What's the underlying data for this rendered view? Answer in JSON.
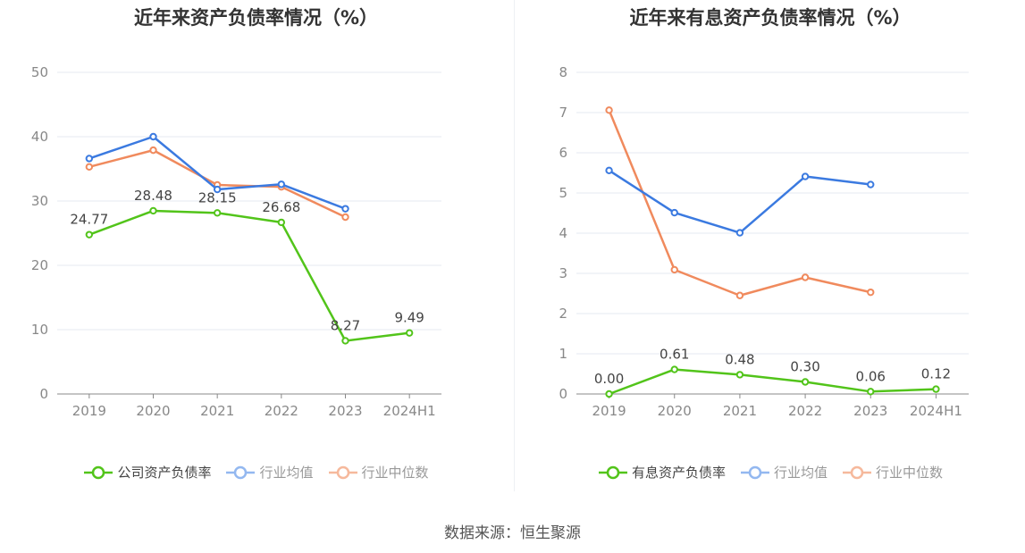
{
  "source": "数据来源：恒生聚源",
  "chart_data": [
    {
      "type": "line",
      "title": "近年来资产负债率情况（%）",
      "categories": [
        "2019",
        "2020",
        "2021",
        "2022",
        "2023",
        "2024H1"
      ],
      "ylim": [
        0,
        50
      ],
      "yticks": [
        "0",
        "10",
        "20",
        "30",
        "40",
        "50"
      ],
      "grid": true,
      "legend_position": "bottom",
      "series": [
        {
          "name": "公司资产负债率",
          "color": "#52c41a",
          "values": [
            24.77,
            28.48,
            28.15,
            26.68,
            8.27,
            9.49
          ],
          "labels": [
            "24.77",
            "28.48",
            "28.15",
            "26.68",
            "8.27",
            "9.49"
          ]
        },
        {
          "name": "行业均值",
          "color": "#3b7ae0",
          "legend_color": "#93b8f0",
          "values": [
            36.6,
            40.0,
            31.8,
            32.6,
            28.8,
            null
          ]
        },
        {
          "name": "行业中位数",
          "color": "#f08a5d",
          "legend_color": "#f6b99c",
          "values": [
            35.3,
            37.9,
            32.5,
            32.2,
            27.5,
            null
          ]
        }
      ]
    },
    {
      "type": "line",
      "title": "近年来有息资产负债率情况（%）",
      "categories": [
        "2019",
        "2020",
        "2021",
        "2022",
        "2023",
        "2024H1"
      ],
      "ylim": [
        0,
        8
      ],
      "yticks": [
        "0",
        "1",
        "2",
        "3",
        "4",
        "5",
        "6",
        "7",
        "8"
      ],
      "grid": true,
      "legend_position": "bottom",
      "series": [
        {
          "name": "有息资产负债率",
          "color": "#52c41a",
          "values": [
            0.0,
            0.61,
            0.48,
            0.3,
            0.06,
            0.12
          ],
          "labels": [
            "0.00",
            "0.61",
            "0.48",
            "0.30",
            "0.06",
            "0.12"
          ]
        },
        {
          "name": "行业均值",
          "color": "#3b7ae0",
          "legend_color": "#93b8f0",
          "values": [
            5.56,
            4.51,
            4.01,
            5.41,
            5.21,
            null
          ]
        },
        {
          "name": "行业中位数",
          "color": "#f08a5d",
          "legend_color": "#f6b99c",
          "values": [
            7.06,
            3.09,
            2.45,
            2.9,
            2.53,
            null
          ]
        }
      ]
    }
  ]
}
